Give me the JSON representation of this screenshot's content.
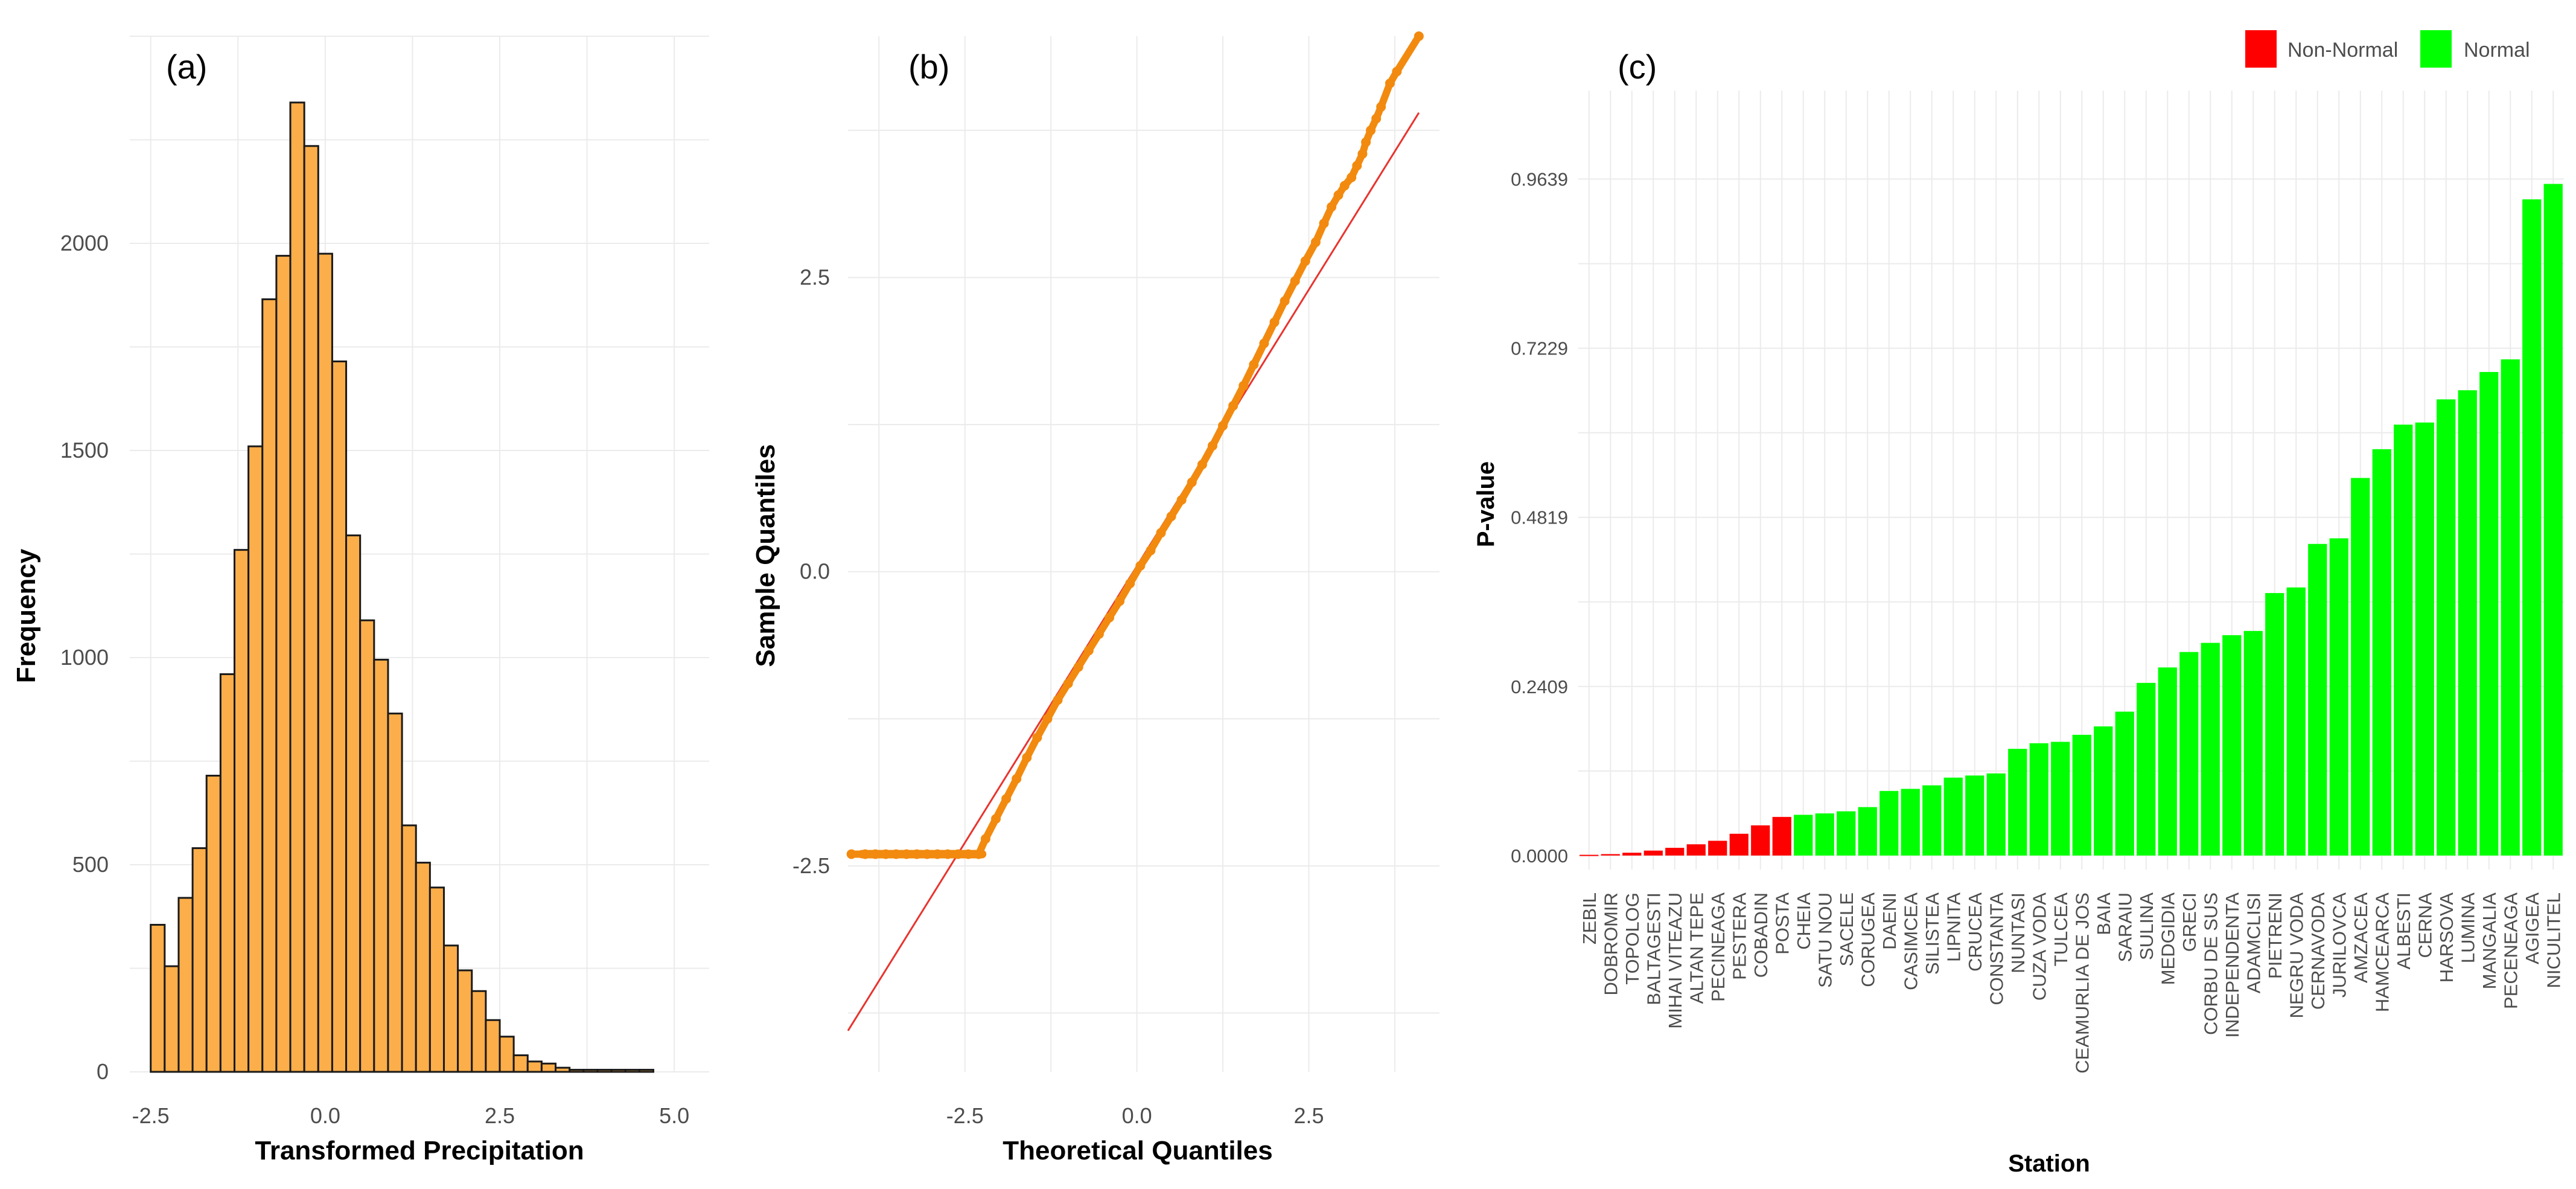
{
  "chart_data": [
    {
      "panel": "(a)",
      "type": "bar",
      "title": "",
      "xlabel": "Transformed Precipitation",
      "ylabel": "Frequency",
      "bin_width": 0.2,
      "bin_starts": [
        -2.5,
        -2.3,
        -2.1,
        -1.9,
        -1.7,
        -1.5,
        -1.3,
        -1.1,
        -0.9,
        -0.7,
        -0.5,
        -0.3,
        -0.1,
        0.1,
        0.3,
        0.5,
        0.7,
        0.9,
        1.1,
        1.3,
        1.5,
        1.7,
        1.9,
        2.1,
        2.3,
        2.5,
        2.7,
        2.9,
        3.1,
        3.3,
        3.5,
        3.7,
        3.9,
        4.1,
        4.3,
        4.5
      ],
      "values": [
        355,
        255,
        420,
        540,
        715,
        960,
        1260,
        1510,
        1865,
        1970,
        2340,
        2235,
        1975,
        1715,
        1295,
        1090,
        995,
        865,
        595,
        505,
        445,
        305,
        245,
        195,
        125,
        85,
        40,
        25,
        20,
        10,
        5,
        5,
        5,
        5,
        5,
        5
      ],
      "xticks": [
        "-2.5",
        "0.0",
        "2.5",
        "5.0"
      ],
      "xtick_values": [
        -2.5,
        0,
        2.5,
        5
      ],
      "yticks": [
        "0",
        "500",
        "1000",
        "1500",
        "2000"
      ],
      "ytick_values": [
        0,
        500,
        1000,
        1500,
        2000
      ],
      "xlim": [
        -2.8,
        5.5
      ],
      "ylim": [
        0,
        2500
      ],
      "fill_color": "#FCAE4A",
      "edge_color": "#1a1a1a"
    },
    {
      "panel": "(b)",
      "type": "scatter",
      "title": "",
      "xlabel": "Theoretical Quantiles",
      "ylabel": "Sample Quantiles",
      "xticks": [
        "-2.5",
        "0.0",
        "2.5"
      ],
      "xtick_values": [
        -2.5,
        0,
        2.5
      ],
      "yticks": [
        "-2.5",
        "0.0",
        "2.5"
      ],
      "ytick_values": [
        -2.5,
        0,
        2.5
      ],
      "xlim": [
        -4.2,
        4.4
      ],
      "ylim": [
        -4.25,
        4.55
      ],
      "point_color": "#F28A0F",
      "line_color": "#E8342E",
      "reference_line": {
        "x": [
          -4.2,
          4.1
        ],
        "y": [
          -3.9,
          3.9
        ]
      },
      "clipped_floor": {
        "y": -2.4,
        "x_from": -4.0,
        "x_to": -2.25
      },
      "points": [
        [
          -4.15,
          -2.4
        ],
        [
          -3.95,
          -2.4
        ],
        [
          -3.8,
          -2.4
        ],
        [
          -3.65,
          -2.4
        ],
        [
          -3.5,
          -2.4
        ],
        [
          -3.35,
          -2.4
        ],
        [
          -3.2,
          -2.4
        ],
        [
          -3.05,
          -2.4
        ],
        [
          -2.9,
          -2.4
        ],
        [
          -2.75,
          -2.4
        ],
        [
          -2.6,
          -2.4
        ],
        [
          -2.45,
          -2.4
        ],
        [
          -2.3,
          -2.4
        ],
        [
          -2.2,
          -2.27
        ],
        [
          -2.05,
          -2.1
        ],
        [
          -1.9,
          -1.93
        ],
        [
          -1.75,
          -1.76
        ],
        [
          -1.6,
          -1.58
        ],
        [
          -1.45,
          -1.41
        ],
        [
          -1.3,
          -1.25
        ],
        [
          -1.15,
          -1.09
        ],
        [
          -1.0,
          -0.95
        ],
        [
          -0.85,
          -0.81
        ],
        [
          -0.7,
          -0.67
        ],
        [
          -0.55,
          -0.53
        ],
        [
          -0.4,
          -0.39
        ],
        [
          -0.25,
          -0.25
        ],
        [
          -0.1,
          -0.1
        ],
        [
          0.05,
          0.05
        ],
        [
          0.2,
          0.18
        ],
        [
          0.35,
          0.33
        ],
        [
          0.5,
          0.47
        ],
        [
          0.65,
          0.61
        ],
        [
          0.8,
          0.76
        ],
        [
          0.95,
          0.91
        ],
        [
          1.1,
          1.07
        ],
        [
          1.25,
          1.24
        ],
        [
          1.4,
          1.41
        ],
        [
          1.55,
          1.58
        ],
        [
          1.7,
          1.76
        ],
        [
          1.85,
          1.94
        ],
        [
          2.0,
          2.12
        ],
        [
          2.15,
          2.3
        ],
        [
          2.3,
          2.47
        ],
        [
          2.45,
          2.64
        ],
        [
          2.6,
          2.8
        ],
        [
          2.72,
          2.96
        ],
        [
          2.83,
          3.1
        ],
        [
          2.93,
          3.2
        ],
        [
          3.02,
          3.28
        ],
        [
          3.12,
          3.35
        ],
        [
          3.2,
          3.45
        ],
        [
          3.28,
          3.55
        ],
        [
          3.33,
          3.65
        ],
        [
          3.4,
          3.75
        ],
        [
          3.48,
          3.85
        ],
        [
          3.55,
          3.95
        ],
        [
          3.68,
          4.15
        ],
        [
          3.78,
          4.25
        ],
        [
          4.1,
          4.55
        ]
      ]
    },
    {
      "panel": "(c)",
      "type": "bar",
      "title": "",
      "xlabel": "Station",
      "ylabel": "P-value",
      "categories": [
        "ZEBIL",
        "DOBROMIR",
        "TOPOLOG",
        "BALTAGESTI",
        "MIHAI VITEAZU",
        "ALTAN TEPE",
        "PECINEAGA",
        "PESTERA",
        "COBADIN",
        "POSTA",
        "CHEIA",
        "SATU NOU",
        "SACELE",
        "CORUGEA",
        "DAENI",
        "CASIMCEA",
        "SILISTEA",
        "LIPNITA",
        "CRUCEA",
        "CONSTANTA",
        "NUNTASI",
        "CUZA VODA",
        "TULCEA",
        "CEAMURLIA DE JOS",
        "BAIA",
        "SARAIU",
        "SULINA",
        "MEDGIDIA",
        "GRECI",
        "CORBU DE SUS",
        "INDEPENDENTA",
        "ADAMCLISI",
        "PIETRENI",
        "NEGRU VODA",
        "CERNAVODA",
        "JURILOVCA",
        "AMZACEA",
        "HAMCEARCA",
        "ALBESTI",
        "CERNA",
        "HARSOVA",
        "LUMINA",
        "MANGALIA",
        "PECENEAGA",
        "AGIGEA",
        "NICULITEL"
      ],
      "values": [
        0.001,
        0.002,
        0.004,
        0.007,
        0.011,
        0.016,
        0.021,
        0.031,
        0.043,
        0.055,
        0.058,
        0.06,
        0.063,
        0.069,
        0.092,
        0.095,
        0.1,
        0.111,
        0.114,
        0.117,
        0.152,
        0.16,
        0.162,
        0.172,
        0.184,
        0.205,
        0.246,
        0.268,
        0.29,
        0.303,
        0.314,
        0.32,
        0.374,
        0.382,
        0.444,
        0.452,
        0.538,
        0.579,
        0.614,
        0.617,
        0.65,
        0.663,
        0.689,
        0.707,
        0.935,
        0.957
      ],
      "status": [
        "Non-Normal",
        "Non-Normal",
        "Non-Normal",
        "Non-Normal",
        "Non-Normal",
        "Non-Normal",
        "Non-Normal",
        "Non-Normal",
        "Non-Normal",
        "Non-Normal",
        "Normal",
        "Normal",
        "Normal",
        "Normal",
        "Normal",
        "Normal",
        "Normal",
        "Normal",
        "Normal",
        "Normal",
        "Normal",
        "Normal",
        "Normal",
        "Normal",
        "Normal",
        "Normal",
        "Normal",
        "Normal",
        "Normal",
        "Normal",
        "Normal",
        "Normal",
        "Normal",
        "Normal",
        "Normal",
        "Normal",
        "Normal",
        "Normal",
        "Normal",
        "Normal",
        "Normal",
        "Normal",
        "Normal",
        "Normal",
        "Normal",
        "Normal"
      ],
      "yticks": [
        "0.0000",
        "0.2409",
        "0.4819",
        "0.7229",
        "0.9639"
      ],
      "ytick_values": [
        0,
        0.2409,
        0.4819,
        0.7229,
        0.9639
      ],
      "ylim": [
        -0.02,
        1.09
      ],
      "legend": [
        {
          "label": "Non-Normal",
          "color": "#FF0000"
        },
        {
          "label": "Normal",
          "color": "#00FF00"
        }
      ],
      "legend_position": "top-right"
    }
  ]
}
